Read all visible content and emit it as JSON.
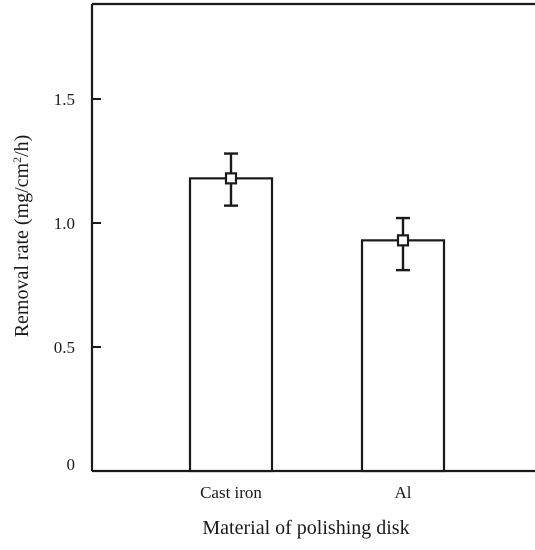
{
  "chart_data": {
    "type": "bar",
    "categories": [
      "Cast iron",
      "Al"
    ],
    "values": [
      1.18,
      0.93
    ],
    "error_low": [
      1.07,
      0.81
    ],
    "error_high": [
      1.28,
      1.02
    ],
    "xlabel": "Material of polishing disk",
    "ylabel_main": "Removal rate (mg/cm",
    "ylabel_sup": "2",
    "ylabel_tail": "/h)",
    "ylim": [
      0,
      1.9
    ],
    "yticks": [
      0,
      0.5,
      1.0,
      1.5
    ],
    "ytick_labels": [
      "0",
      "0.5",
      "1.0",
      "1.5"
    ],
    "grid": false,
    "colors": {
      "bar_fill": "#ffffff",
      "stroke": "#1a1a1a"
    }
  }
}
